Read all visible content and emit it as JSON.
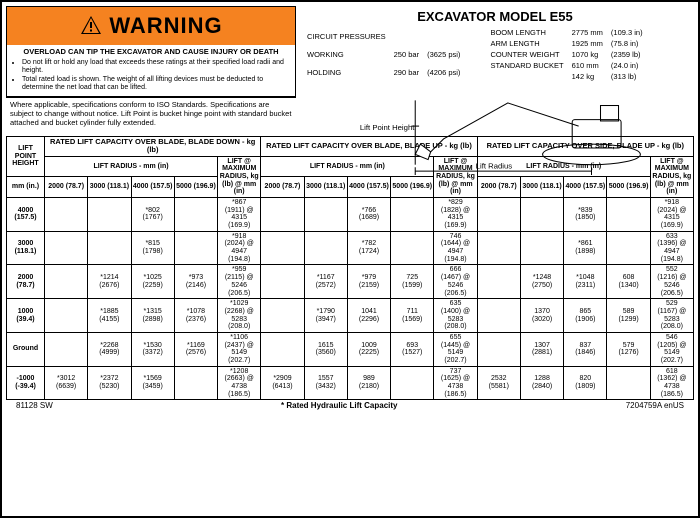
{
  "warning": {
    "label": "WARNING",
    "heading": "OVERLOAD CAN TIP THE EXCAVATOR AND CAUSE INJURY OR DEATH",
    "bullets": [
      "Do not lift or hold any load that exceeds these ratings at their specified load radii and height.",
      "Total rated load is shown. The weight of all lifting devices must be deducted to determine the net load that can be lifted."
    ]
  },
  "iso_note": "Where applicable, specifications conform to ISO Standards. Specifications are subject to change without notice. Lift Point is bucket hinge point with standard bucket attached and bucket cylinder fully extended.",
  "model": "EXCAVATOR MODEL E55",
  "specs_left": [
    [
      "CIRCUIT PRESSURES",
      "",
      ""
    ],
    [
      "WORKING",
      "250 bar",
      "(3625 psi)"
    ],
    [
      "HOLDING",
      "290 bar",
      "(4206 psi)"
    ]
  ],
  "specs_right": [
    [
      "BOOM LENGTH",
      "2775 mm",
      "(109.3 in)"
    ],
    [
      "ARM LENGTH",
      "1925 mm",
      "(75.8 in)"
    ],
    [
      "COUNTER WEIGHT",
      "1070 kg",
      "(2359 lb)"
    ],
    [
      "STANDARD BUCKET",
      "610 mm",
      "(24.0 in)"
    ],
    [
      "",
      "142 kg",
      "(313 lb)"
    ]
  ],
  "dia_labels": {
    "lph": "Lift Point Height",
    "lr": "Lift Radius"
  },
  "lift_headers": {
    "lph": "LIFT POINT HEIGHT",
    "sections": [
      "RATED LIFT CAPACITY OVER BLADE, BLADE DOWN - kg (lb)",
      "RATED LIFT CAPACITY OVER BLADE, BLADE UP - kg (lb)",
      "RATED LIFT CAPACITY OVER SIDE, BLADE UP - kg (lb)"
    ],
    "radius": "LIFT RADIUS - mm (in)",
    "max": "LIFT @ MAXIMUM RADIUS, kg (lb) @ mm (in)",
    "cols": [
      "2000 (78.7)",
      "3000 (118.1)",
      "4000 (157.5)",
      "5000 (196.9)"
    ],
    "unit": "mm (in.)"
  },
  "rows": [
    {
      "h": "4000 (157.5)",
      "s1": [
        "",
        "",
        "*802 (1767)",
        "",
        "*867 (1911) @ 4315 (169.9)"
      ],
      "s2": [
        "",
        "",
        "*766 (1689)",
        "",
        "*829 (1828) @ 4315 (169.9)"
      ],
      "s3": [
        "",
        "",
        "*839 (1850)",
        "",
        "*918 (2024) @ 4315 (169.9)"
      ]
    },
    {
      "h": "3000 (118.1)",
      "s1": [
        "",
        "",
        "*815 (1798)",
        "",
        "*918 (2024) @ 4947 (194.8)"
      ],
      "s2": [
        "",
        "",
        "*782 (1724)",
        "",
        "746 (1644) @ 4947 (194.8)"
      ],
      "s3": [
        "",
        "",
        "*861 (1898)",
        "",
        "633 (1396) @ 4947 (194.8)"
      ]
    },
    {
      "h": "2000 (78.7)",
      "s1": [
        "",
        "*1214 (2676)",
        "*1025 (2259)",
        "*973 (2146)",
        "*959 (2115) @ 5246 (206.5)"
      ],
      "s2": [
        "",
        "*1167 (2572)",
        "*979 (2159)",
        "725 (1599)",
        "666 (1467) @ 5246 (206.5)"
      ],
      "s3": [
        "",
        "*1248 (2750)",
        "*1048 (2311)",
        "608 (1340)",
        "552 (1216) @ 5246 (206.5)"
      ]
    },
    {
      "h": "1000 (39.4)",
      "s1": [
        "",
        "*1885 (4155)",
        "*1315 (2898)",
        "*1078 (2376)",
        "*1029 (2268) @ 5283 (208.0)"
      ],
      "s2": [
        "",
        "*1790 (3947)",
        "1041 (2296)",
        "711 (1569)",
        "635 (1400) @ 5283 (208.0)"
      ],
      "s3": [
        "",
        "1370 (3020)",
        "865 (1906)",
        "589 (1299)",
        "529 (1167) @ 5283 (208.0)"
      ]
    },
    {
      "h": "Ground",
      "s1": [
        "",
        "*2268 (4999)",
        "*1530 (3372)",
        "*1169 (2576)",
        "*1106 (2437) @ 5149 (202.7)"
      ],
      "s2": [
        "",
        "1615 (3560)",
        "1009 (2225)",
        "693 (1527)",
        "655 (1445) @ 5149 (202.7)"
      ],
      "s3": [
        "",
        "1307 (2881)",
        "837 (1846)",
        "579 (1276)",
        "546 (1205) @ 5149 (202.7)"
      ]
    },
    {
      "h": "-1000 (-39.4)",
      "s1": [
        "*3012 (6639)",
        "*2372 (5230)",
        "*1569 (3459)",
        "",
        "*1208 (2663) @ 4738 (186.5)"
      ],
      "s2": [
        "*2909 (6413)",
        "1557 (3432)",
        "989 (2180)",
        "",
        "737(1625) @ 4738 (186.5)"
      ],
      "s3": [
        "2532 (5581)",
        "1288 (2840)",
        "820 (1809)",
        "",
        "618 (1362) @ 4738 (186.5)"
      ]
    }
  ],
  "footer": {
    "left": "81128 SW",
    "mid": "* Rated Hydraulic Lift Capacity",
    "right": "7204759A enUS"
  }
}
